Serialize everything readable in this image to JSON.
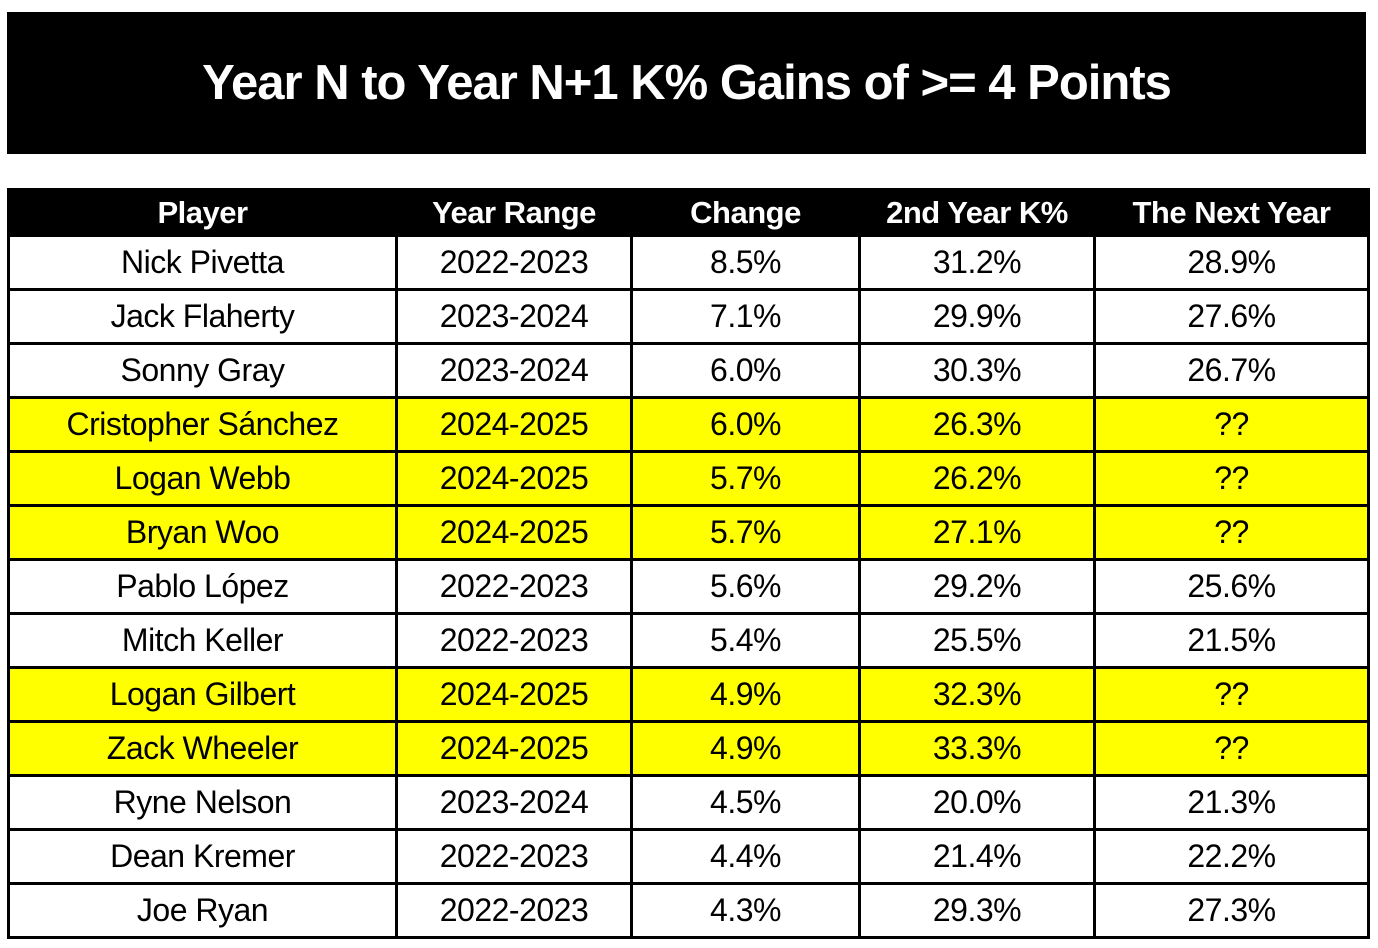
{
  "title": "Year N to Year N+1 K% Gains of >= 4 Points",
  "colors": {
    "banner_bg": "#000000",
    "banner_text": "#FFFFFF",
    "header_bg": "#000000",
    "header_text": "#FFFFFF",
    "row_bg": "#FFFFFF",
    "highlight_row_bg": "#FFFF00",
    "border": "#000000",
    "cell_text": "#000000"
  },
  "table": {
    "columns": [
      "Player",
      "Year Range",
      "Change",
      "2nd Year K%",
      "The Next Year"
    ],
    "rows": [
      {
        "player": "Nick Pivetta",
        "year_range": "2022-2023",
        "change": "8.5%",
        "second_year_k": "31.2%",
        "next_year": "28.9%",
        "highlighted": false
      },
      {
        "player": "Jack Flaherty",
        "year_range": "2023-2024",
        "change": "7.1%",
        "second_year_k": "29.9%",
        "next_year": "27.6%",
        "highlighted": false
      },
      {
        "player": "Sonny Gray",
        "year_range": "2023-2024",
        "change": "6.0%",
        "second_year_k": "30.3%",
        "next_year": "26.7%",
        "highlighted": false
      },
      {
        "player": "Cristopher Sánchez",
        "year_range": "2024-2025",
        "change": "6.0%",
        "second_year_k": "26.3%",
        "next_year": "??",
        "highlighted": true
      },
      {
        "player": "Logan Webb",
        "year_range": "2024-2025",
        "change": "5.7%",
        "second_year_k": "26.2%",
        "next_year": "??",
        "highlighted": true
      },
      {
        "player": "Bryan Woo",
        "year_range": "2024-2025",
        "change": "5.7%",
        "second_year_k": "27.1%",
        "next_year": "??",
        "highlighted": true
      },
      {
        "player": "Pablo López",
        "year_range": "2022-2023",
        "change": "5.6%",
        "second_year_k": "29.2%",
        "next_year": "25.6%",
        "highlighted": false
      },
      {
        "player": "Mitch Keller",
        "year_range": "2022-2023",
        "change": "5.4%",
        "second_year_k": "25.5%",
        "next_year": "21.5%",
        "highlighted": false
      },
      {
        "player": "Logan Gilbert",
        "year_range": "2024-2025",
        "change": "4.9%",
        "second_year_k": "32.3%",
        "next_year": "??",
        "highlighted": true
      },
      {
        "player": "Zack Wheeler",
        "year_range": "2024-2025",
        "change": "4.9%",
        "second_year_k": "33.3%",
        "next_year": "??",
        "highlighted": true
      },
      {
        "player": "Ryne Nelson",
        "year_range": "2023-2024",
        "change": "4.5%",
        "second_year_k": "20.0%",
        "next_year": "21.3%",
        "highlighted": false
      },
      {
        "player": "Dean Kremer",
        "year_range": "2022-2023",
        "change": "4.4%",
        "second_year_k": "21.4%",
        "next_year": "22.2%",
        "highlighted": false
      },
      {
        "player": "Joe Ryan",
        "year_range": "2022-2023",
        "change": "4.3%",
        "second_year_k": "29.3%",
        "next_year": "27.3%",
        "highlighted": false
      }
    ]
  },
  "chart_data": {
    "type": "table",
    "title": "Year N to Year N+1 K% Gains of >= 4 Points",
    "columns": [
      "Player",
      "Year Range",
      "Change",
      "2nd Year K%",
      "The Next Year"
    ],
    "rows": [
      [
        "Nick Pivetta",
        "2022-2023",
        "8.5%",
        "31.2%",
        "28.9%"
      ],
      [
        "Jack Flaherty",
        "2023-2024",
        "7.1%",
        "29.9%",
        "27.6%"
      ],
      [
        "Sonny Gray",
        "2023-2024",
        "6.0%",
        "30.3%",
        "26.7%"
      ],
      [
        "Cristopher Sánchez",
        "2024-2025",
        "6.0%",
        "26.3%",
        "??"
      ],
      [
        "Logan Webb",
        "2024-2025",
        "5.7%",
        "26.2%",
        "??"
      ],
      [
        "Bryan Woo",
        "2024-2025",
        "5.7%",
        "27.1%",
        "??"
      ],
      [
        "Pablo López",
        "2022-2023",
        "5.6%",
        "29.2%",
        "25.6%"
      ],
      [
        "Mitch Keller",
        "2022-2023",
        "5.4%",
        "25.5%",
        "21.5%"
      ],
      [
        "Logan Gilbert",
        "2024-2025",
        "4.9%",
        "32.3%",
        "??"
      ],
      [
        "Zack Wheeler",
        "2024-2025",
        "4.9%",
        "33.3%",
        "??"
      ],
      [
        "Ryne Nelson",
        "2023-2024",
        "4.5%",
        "20.0%",
        "21.3%"
      ],
      [
        "Dean Kremer",
        "2022-2023",
        "4.4%",
        "21.4%",
        "22.2%"
      ],
      [
        "Joe Ryan",
        "2022-2023",
        "4.3%",
        "29.3%",
        "27.3%"
      ]
    ],
    "highlighted_rows": [
      "Cristopher Sánchez",
      "Logan Webb",
      "Bryan Woo",
      "Logan Gilbert",
      "Zack Wheeler"
    ],
    "highlight_color": "#FFFF00",
    "layout": "title banner on black, bordered data table, highlighted rows are 2024-2025 pitchers with unknown next-year K%"
  }
}
